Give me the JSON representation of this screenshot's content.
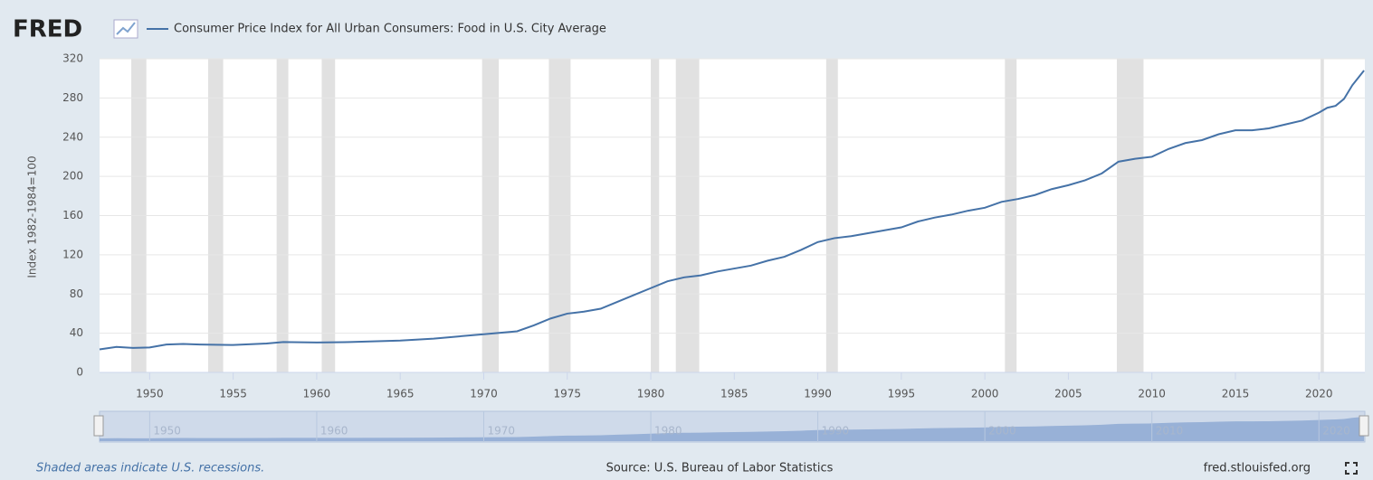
{
  "logo": "FRED",
  "footer": {
    "note": "Shaded areas indicate U.S. recessions.",
    "source": "Source: U.S. Bureau of Labor Statistics",
    "site": "fred.stlouisfed.org"
  },
  "chart_data": {
    "type": "line",
    "ylabel": "Index 1982-1984=100",
    "xlim": [
      1947,
      2022.75
    ],
    "ylim": [
      0,
      320
    ],
    "xticks": [
      1950,
      1955,
      1960,
      1965,
      1970,
      1975,
      1980,
      1985,
      1990,
      1995,
      2000,
      2005,
      2010,
      2015,
      2020
    ],
    "yticks": [
      0,
      40,
      80,
      120,
      160,
      200,
      240,
      280,
      320
    ],
    "navigator_xticks": [
      1950,
      1960,
      1970,
      1980,
      1990,
      2000,
      2010,
      2020
    ],
    "grid": true,
    "recessions": [
      [
        1948.9,
        1949.8
      ],
      [
        1953.5,
        1954.4
      ],
      [
        1957.6,
        1958.3
      ],
      [
        1960.3,
        1961.1
      ],
      [
        1969.9,
        1970.9
      ],
      [
        1973.9,
        1975.2
      ],
      [
        1980.0,
        1980.5
      ],
      [
        1981.5,
        1982.9
      ],
      [
        1990.5,
        1991.2
      ],
      [
        2001.2,
        2001.9
      ],
      [
        2007.9,
        2009.5
      ],
      [
        2020.1,
        2020.3
      ]
    ],
    "recession_color": "#e1e1e1",
    "x": [
      1947,
      1948,
      1949,
      1950,
      1951,
      1952,
      1953,
      1955,
      1957,
      1958,
      1960,
      1962,
      1965,
      1967,
      1970,
      1972,
      1973,
      1974,
      1975,
      1976,
      1977,
      1978,
      1979,
      1980,
      1981,
      1982,
      1983,
      1984,
      1985,
      1986,
      1987,
      1988,
      1989,
      1990,
      1991,
      1992,
      1993,
      1994,
      1995,
      1996,
      1997,
      1998,
      1999,
      2000,
      2001,
      2002,
      2003,
      2004,
      2005,
      2006,
      2007,
      2008,
      2009,
      2010,
      2011,
      2012,
      2013,
      2014,
      2015,
      2016,
      2017,
      2018,
      2019,
      2020,
      2020.5,
      2021,
      2021.5,
      2022,
      2022.7
    ],
    "series": [
      {
        "name": "Consumer Price Index for All Urban Consumers: Food in U.S. City Average",
        "color": "#4572a7",
        "values": [
          23.5,
          26,
          25,
          25.5,
          28.5,
          29,
          28.5,
          28,
          29.5,
          31,
          30.5,
          31,
          32.5,
          34.5,
          39,
          42,
          48,
          55,
          60,
          62,
          65,
          72,
          79,
          86,
          93,
          97,
          99,
          103,
          106,
          109,
          114,
          118,
          125,
          133,
          137,
          139,
          142,
          145,
          148,
          154,
          158,
          161,
          165,
          168,
          174,
          177,
          181,
          187,
          191,
          196,
          203,
          215,
          218,
          220,
          228,
          234,
          237,
          243,
          247,
          247,
          249,
          253,
          257,
          265,
          270,
          272,
          279,
          293,
          308
        ]
      }
    ]
  }
}
